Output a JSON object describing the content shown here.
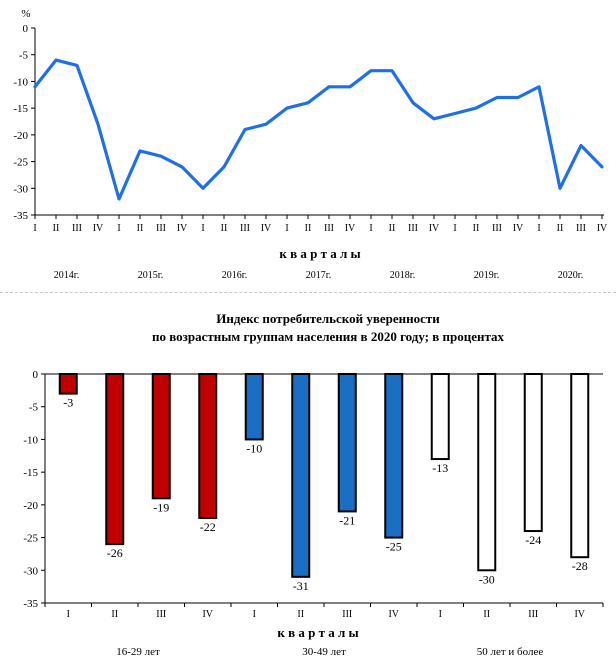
{
  "chart_data": [
    {
      "type": "line",
      "title": "",
      "y_unit": "%",
      "xlabel": "к в а р т а л ы",
      "ylabel": "",
      "ylim": [
        -35,
        0
      ],
      "yticks": [
        0,
        -5,
        -10,
        -15,
        -20,
        -25,
        -30,
        -35
      ],
      "categories": [
        "I",
        "II",
        "III",
        "IV",
        "I",
        "II",
        "III",
        "IV",
        "I",
        "II",
        "III",
        "IV",
        "I",
        "II",
        "III",
        "IV",
        "I",
        "II",
        "III",
        "IV",
        "I",
        "II",
        "III",
        "IV",
        "I",
        "II",
        "III",
        "IV"
      ],
      "year_labels": [
        "2014г.",
        "2015г.",
        "2016г.",
        "2017г.",
        "2018г.",
        "2019г.",
        "2020г."
      ],
      "series": [
        {
          "values": [
            -11,
            -6,
            -7,
            -18,
            -32,
            -23,
            -24,
            -26,
            -30,
            -26,
            -19,
            -18,
            -15,
            -14,
            -11,
            -11,
            -8,
            -8,
            -14,
            -17,
            -16,
            -15,
            -13,
            -13,
            -11,
            -30,
            -22,
            -26
          ]
        }
      ],
      "grid": false,
      "colors": {
        "line": "#1f6fe5",
        "axis": "#000000"
      }
    },
    {
      "type": "bar",
      "title": "Индекс  потребительской  уверенности",
      "subtitle": "по  возрастным  группам  населения  в 2020 году; в процентах",
      "xlabel": "к в а р т а л ы",
      "ylabel": "",
      "ylim": [
        -35,
        0
      ],
      "yticks": [
        0,
        -5,
        -10,
        -15,
        -20,
        -25,
        -30,
        -35
      ],
      "categories": [
        "I",
        "II",
        "III",
        "IV",
        "I",
        "II",
        "III",
        "IV",
        "I",
        "II",
        "III",
        "IV"
      ],
      "values": [
        -3,
        -26,
        -19,
        -22,
        -10,
        -31,
        -21,
        -25,
        -13,
        -30,
        -24,
        -28
      ],
      "value_labels": [
        "-3",
        "-26",
        "-19",
        "-22",
        "-10",
        "-31",
        "-21",
        "-25",
        "-13",
        "-30",
        "-24",
        "-28"
      ],
      "groups": [
        {
          "name": "16-29 лет",
          "color": "#c00000"
        },
        {
          "name": "30-49 лет",
          "color": "#1a6fc4"
        },
        {
          "name": "50 лет и более",
          "color": "#ffffff"
        }
      ],
      "grid": false
    }
  ]
}
